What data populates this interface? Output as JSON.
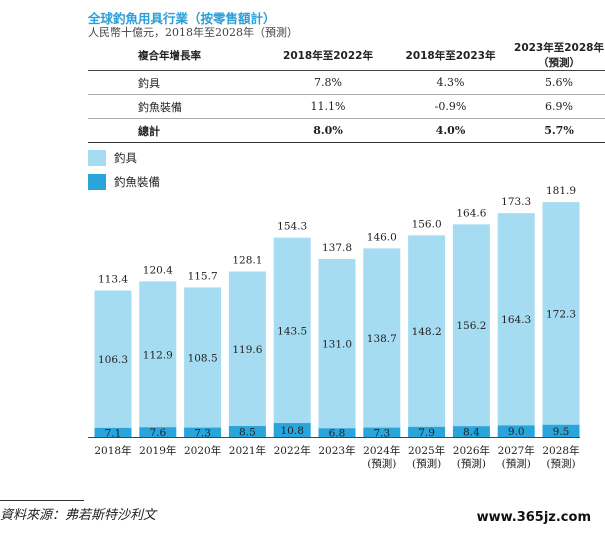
{
  "header": {
    "title": "全球釣魚用具行業（按零售額計）",
    "subtitle": "人民幣十億元，2018年至2028年（預測）"
  },
  "table": {
    "columns": [
      "複合年增長率",
      "2018年至2022年",
      "2018年至2023年",
      "2023年至2028年（預測）"
    ],
    "rows": [
      [
        "釣具",
        "7.8%",
        "4.3%",
        "5.6%"
      ],
      [
        "釣魚裝備",
        "11.1%",
        "-0.9%",
        "6.9%"
      ]
    ],
    "total": [
      "總計",
      "8.0%",
      "4.0%",
      "5.7%"
    ]
  },
  "colors": {
    "tackle": "#a6dcf2",
    "gear": "#2aa5dc",
    "title": "#2c9fd8"
  },
  "chart_data": {
    "type": "bar",
    "stacked": true,
    "categories": [
      "2018年",
      "2019年",
      "2020年",
      "2021年",
      "2022年",
      "2023年",
      "2024年\n(預測)",
      "2025年\n(預測)",
      "2026年\n(預測)",
      "2027年\n(預測)",
      "2028年\n(預測)"
    ],
    "series": [
      {
        "name": "釣魚裝備",
        "values": [
          7.1,
          7.6,
          7.3,
          8.5,
          10.8,
          6.8,
          7.3,
          7.9,
          8.4,
          9.0,
          9.5
        ]
      },
      {
        "name": "釣具",
        "values": [
          106.3,
          112.9,
          108.5,
          119.6,
          143.5,
          131.0,
          138.7,
          148.2,
          156.2,
          164.3,
          172.3
        ]
      }
    ],
    "totals": [
      113.4,
      120.4,
      115.7,
      128.1,
      154.3,
      137.8,
      146.0,
      156.0,
      164.6,
      173.3,
      181.9
    ],
    "legend": [
      "釣具",
      "釣魚裝備"
    ],
    "legend_position": "top-left",
    "grid": false,
    "ylim": [
      0,
      190
    ]
  },
  "footer": {
    "source": "資料來源：弗若斯特沙利文",
    "watermark": "www.365jz.com"
  }
}
